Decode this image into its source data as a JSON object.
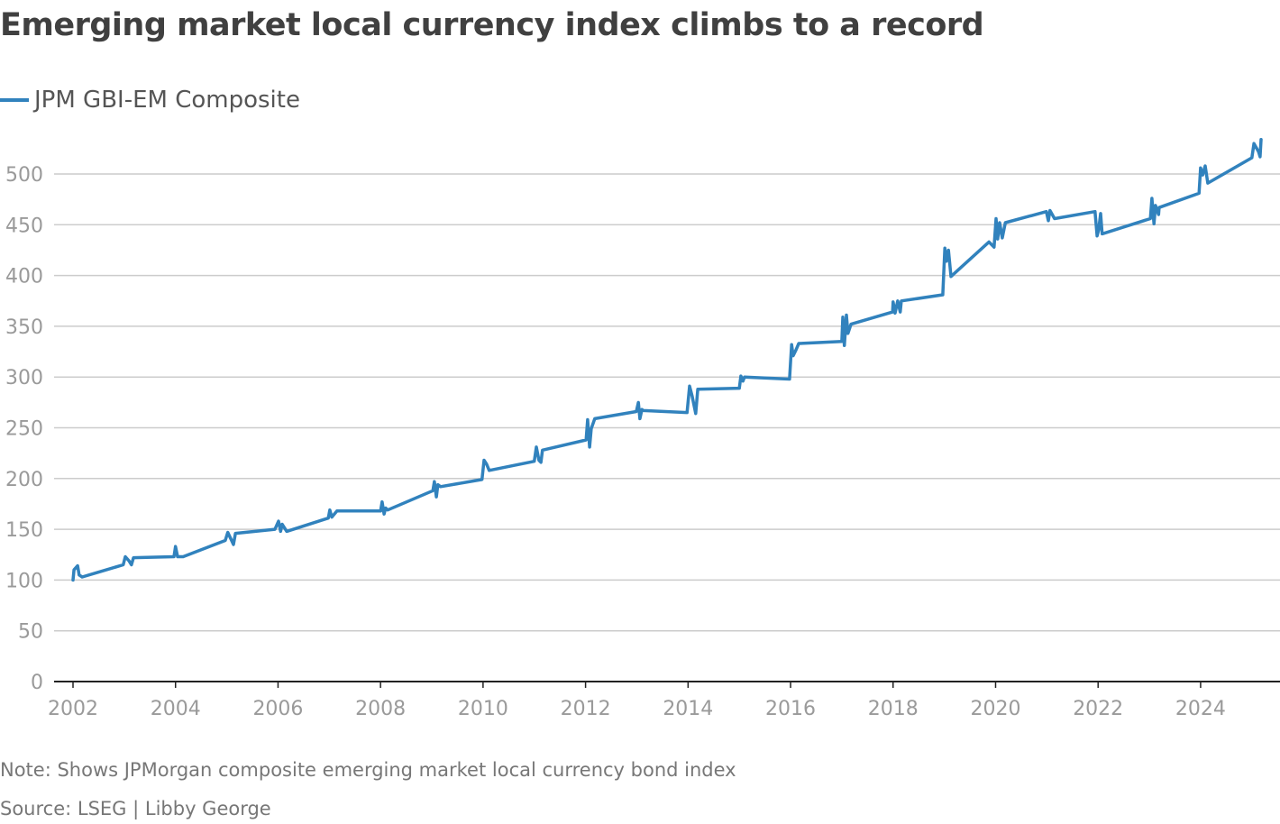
{
  "chart_data": {
    "type": "line",
    "title": "Emerging market local currency index climbs to a record",
    "xlabel": "",
    "ylabel": "",
    "xlim": [
      2001.65,
      2025.6
    ],
    "ylim": [
      0,
      500
    ],
    "yticks": [
      0,
      50,
      100,
      150,
      200,
      250,
      300,
      350,
      400,
      450,
      500
    ],
    "xticks": [
      2002,
      2004,
      2006,
      2008,
      2010,
      2012,
      2014,
      2016,
      2018,
      2020,
      2022,
      2024
    ],
    "grid": "horizontal",
    "legend_position": "top-left",
    "line_color": "#3182bd",
    "series": [
      {
        "name": "JPM GBI-EM Composite",
        "x": [
          2002.0,
          2002.02,
          2002.09,
          2002.12,
          2002.18,
          2002.98,
          2003.02,
          2003.09,
          2003.14,
          2003.18,
          2003.97,
          2004.0,
          2004.04,
          2004.15,
          2004.97,
          2005.02,
          2005.13,
          2005.17,
          2005.94,
          2006.01,
          2006.05,
          2006.08,
          2006.17,
          2006.98,
          2007.01,
          2007.05,
          2007.15,
          2008.0,
          2008.03,
          2008.07,
          2008.1,
          2008.14,
          2009.02,
          2009.05,
          2009.09,
          2009.12,
          2009.17,
          2009.98,
          2010.02,
          2010.07,
          2010.12,
          2011.0,
          2011.04,
          2011.09,
          2011.13,
          2011.16,
          2012.01,
          2012.04,
          2012.08,
          2012.11,
          2012.18,
          2012.99,
          2013.03,
          2013.06,
          2013.1,
          2013.13,
          2013.98,
          2014.03,
          2014.08,
          2014.15,
          2014.19,
          2015.0,
          2015.03,
          2015.07,
          2015.1,
          2015.98,
          2016.02,
          2016.05,
          2016.1,
          2016.16,
          2017.0,
          2017.02,
          2017.05,
          2017.09,
          2017.12,
          2017.18,
          2017.99,
          2018.0,
          2018.04,
          2018.09,
          2018.14,
          2018.16,
          2018.97,
          2019.01,
          2019.04,
          2019.08,
          2019.13,
          2019.87,
          2019.97,
          2020.01,
          2020.04,
          2020.08,
          2020.13,
          2020.19,
          2020.99,
          2021.03,
          2021.06,
          2021.15,
          2021.94,
          2021.98,
          2022.01,
          2022.05,
          2022.08,
          2023.02,
          2023.05,
          2023.09,
          2023.12,
          2023.18,
          2023.19,
          2023.97,
          2024.0,
          2024.04,
          2024.09,
          2024.14,
          2025.0,
          2025.04,
          2025.13,
          2025.16,
          2025.18
        ],
        "values": [
          100,
          110,
          114,
          105,
          103,
          115,
          123,
          119,
          115,
          122,
          123,
          133,
          123,
          123,
          139,
          147,
          135,
          146,
          150,
          158,
          148,
          155,
          148,
          161,
          169,
          162,
          168,
          168,
          177,
          165,
          171,
          169,
          188,
          197,
          182,
          194,
          192,
          199,
          218,
          214,
          208,
          217,
          231,
          218,
          216,
          228,
          238,
          258,
          231,
          249,
          259,
          266,
          275,
          259,
          268,
          267,
          265,
          291,
          281,
          264,
          288,
          289,
          301,
          296,
          300,
          298,
          332,
          321,
          326,
          333,
          335,
          359,
          331,
          361,
          343,
          352,
          364,
          374,
          363,
          375,
          364,
          375,
          381,
          427,
          414,
          425,
          399,
          433,
          428,
          456,
          436,
          452,
          437,
          452,
          463,
          454,
          464,
          456,
          463,
          439,
          445,
          461,
          441,
          456,
          476,
          451,
          469,
          460,
          467,
          481,
          506,
          499,
          508,
          491,
          516,
          530,
          522,
          517,
          534
        ]
      }
    ]
  },
  "legend": {
    "label": "JPM GBI-EM Composite"
  },
  "footer": {
    "note": "Note: Shows JPMorgan composite emerging market local currency bond index",
    "source": "Source: LSEG | Libby George"
  }
}
